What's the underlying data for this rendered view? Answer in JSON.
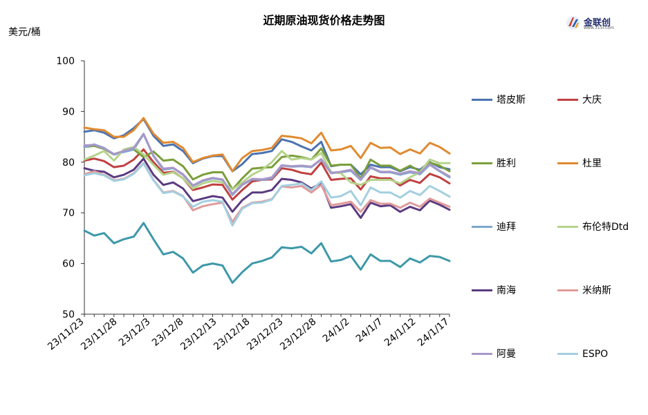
{
  "chart_data": {
    "type": "line",
    "title": "近期原油现货价格走势图",
    "ylabel": "美元/桶",
    "ylim": [
      50,
      100
    ],
    "yticks": [
      50,
      60,
      70,
      80,
      90,
      100
    ],
    "grid": false,
    "legend_position": "right",
    "x": [
      "23/11/22",
      "23/11/23",
      "23/11/24",
      "23/11/27",
      "23/11/28",
      "23/11/29",
      "23/11/30",
      "23/12/1",
      "23/12/4",
      "23/12/5",
      "23/12/6",
      "23/12/7",
      "23/12/8",
      "23/12/11",
      "23/12/12",
      "23/12/13",
      "23/12/14",
      "23/12/15",
      "23/12/18",
      "23/12/19",
      "23/12/20",
      "23/12/21",
      "23/12/22",
      "23/12/26",
      "23/12/27",
      "23/12/28",
      "23/12/29",
      "24/1/2",
      "24/1/3",
      "24/1/4",
      "24/1/5",
      "24/1/8",
      "24/1/9",
      "24/1/10",
      "24/1/11",
      "24/1/12",
      "24/1/16",
      "24/1/17"
    ],
    "xtick_labels": [
      "23/11/23",
      "23/11/28",
      "23/12/3",
      "23/12/8",
      "23/12/13",
      "23/12/18",
      "23/12/23",
      "23/12/28",
      "24/1/2",
      "24/1/7",
      "24/1/12",
      "24/1/17"
    ],
    "series": [
      {
        "name": "塔皮斯",
        "color": "#4a72b0",
        "values": [
          86.0,
          86.3,
          85.8,
          84.7,
          85.3,
          86.7,
          88.5,
          85.2,
          83.2,
          83.5,
          82.2,
          79.8,
          80.7,
          81.2,
          81.2,
          78.2,
          79.6,
          81.6,
          81.8,
          82.2,
          84.5,
          84.0,
          83.1,
          82.3,
          84.0,
          79.2,
          79.5,
          79.5,
          77.6,
          79.5,
          79.0,
          79.0,
          78.2,
          79.0,
          78.5,
          80.0,
          79.0,
          78.6
        ]
      },
      {
        "name": "大庆",
        "color": "#c04040",
        "values": [
          80.3,
          80.7,
          80.2,
          79.0,
          79.3,
          80.5,
          82.5,
          80.0,
          77.9,
          78.1,
          76.8,
          74.5,
          75.0,
          75.6,
          75.5,
          72.6,
          74.5,
          76.2,
          76.5,
          76.6,
          78.8,
          78.5,
          77.9,
          77.6,
          79.9,
          76.5,
          76.7,
          76.8,
          74.6,
          77.2,
          76.8,
          76.8,
          75.4,
          76.5,
          75.9,
          77.7,
          77.0,
          75.8
        ]
      },
      {
        "name": "胜利",
        "color": "#7a9e3a",
        "values": [
          83.0,
          83.2,
          82.6,
          81.5,
          82.0,
          82.5,
          81.0,
          82.1,
          80.3,
          80.5,
          79.2,
          76.6,
          77.5,
          78.0,
          78.0,
          74.6,
          76.8,
          78.7,
          78.9,
          79.0,
          81.0,
          81.3,
          81.0,
          80.5,
          82.7,
          79.3,
          79.5,
          79.5,
          76.8,
          80.5,
          79.3,
          79.3,
          78.3,
          79.3,
          78.2,
          79.9,
          79.3,
          78.2
        ]
      },
      {
        "name": "杜里",
        "color": "#e08a30",
        "values": [
          86.8,
          86.5,
          86.3,
          85.0,
          85.0,
          86.3,
          88.7,
          85.6,
          83.8,
          84.0,
          82.8,
          80.0,
          80.8,
          81.3,
          81.5,
          78.2,
          80.8,
          82.2,
          82.4,
          82.8,
          85.2,
          85.0,
          84.7,
          83.7,
          85.8,
          82.3,
          82.5,
          83.2,
          80.8,
          83.8,
          82.8,
          82.9,
          81.6,
          82.5,
          81.7,
          83.8,
          83.0,
          81.7
        ]
      },
      {
        "name": "迪拜",
        "color": "#7ea6cf",
        "values": [
          83.0,
          83.5,
          82.8,
          81.5,
          82.0,
          82.5,
          85.5,
          81.2,
          78.5,
          78.8,
          77.5,
          75.3,
          76.3,
          76.8,
          76.5,
          73.5,
          75.5,
          76.6,
          76.5,
          76.8,
          79.3,
          79.1,
          79.2,
          79.0,
          80.5,
          77.8,
          78.0,
          78.3,
          76.5,
          78.9,
          78.0,
          78.0,
          77.5,
          78.0,
          77.6,
          79.5,
          78.2,
          77.0
        ]
      },
      {
        "name": "布伦特Dtd",
        "color": "#b5d38a",
        "values": [
          80.5,
          81.3,
          82.2,
          80.3,
          82.5,
          83.0,
          81.5,
          79.5,
          77.5,
          78.0,
          76.8,
          74.8,
          75.8,
          76.3,
          76.0,
          74.6,
          76.0,
          77.5,
          78.5,
          80.0,
          82.2,
          80.5,
          80.8,
          80.5,
          81.8,
          78.0,
          77.8,
          76.0,
          75.5,
          76.5,
          76.5,
          76.5,
          75.8,
          77.0,
          78.0,
          80.5,
          79.8,
          79.8
        ]
      },
      {
        "name": "南海",
        "color": "#5a3a80",
        "values": [
          78.8,
          78.3,
          78.1,
          77.0,
          77.5,
          78.5,
          80.7,
          77.5,
          75.5,
          76.0,
          74.8,
          72.3,
          72.8,
          73.3,
          73.0,
          70.2,
          72.5,
          74.0,
          74.0,
          74.5,
          76.7,
          76.5,
          76.0,
          74.8,
          75.9,
          71.0,
          71.3,
          71.7,
          69.0,
          72.0,
          71.3,
          71.5,
          70.2,
          71.2,
          70.5,
          72.4,
          71.6,
          70.6
        ]
      },
      {
        "name": "米纳斯",
        "color": "#e09a9a",
        "values": [
          77.6,
          78.2,
          77.5,
          76.4,
          76.7,
          77.8,
          79.8,
          76.5,
          74.0,
          74.3,
          73.3,
          70.5,
          71.3,
          71.7,
          72.0,
          68.2,
          71.0,
          72.0,
          72.2,
          72.7,
          75.2,
          75.0,
          75.3,
          74.0,
          75.5,
          71.5,
          71.8,
          72.2,
          70.2,
          72.5,
          71.8,
          71.8,
          71.0,
          72.0,
          71.2,
          72.8,
          72.0,
          71.2
        ]
      },
      {
        "name": "阿曼",
        "color": "#a898c8",
        "values": [
          83.3,
          83.4,
          82.7,
          81.6,
          82.2,
          82.8,
          85.6,
          81.3,
          78.7,
          78.9,
          77.6,
          75.4,
          76.4,
          76.9,
          76.6,
          73.7,
          75.6,
          76.7,
          76.6,
          77.0,
          79.4,
          79.2,
          79.3,
          79.1,
          80.6,
          77.9,
          78.1,
          78.5,
          76.6,
          79.0,
          78.1,
          78.1,
          77.7,
          78.2,
          77.8,
          79.6,
          78.3,
          77.2
        ]
      },
      {
        "name": "ESPO",
        "color": "#a3cfe0",
        "values": [
          77.4,
          77.8,
          77.4,
          76.3,
          76.6,
          77.7,
          79.7,
          76.4,
          73.9,
          74.2,
          73.2,
          71.2,
          72.2,
          72.5,
          72.2,
          67.5,
          70.8,
          71.9,
          72.0,
          72.6,
          75.3,
          75.5,
          75.8,
          74.5,
          76.2,
          73.0,
          73.3,
          74.3,
          71.5,
          75.0,
          74.0,
          74.0,
          73.0,
          74.3,
          73.5,
          75.3,
          74.3,
          73.2
        ]
      },
      {
        "name": "",
        "color": "#3c98a8",
        "values": [
          66.5,
          65.5,
          66.0,
          64.0,
          64.8,
          65.3,
          68.0,
          64.8,
          61.8,
          62.3,
          61.0,
          58.2,
          59.6,
          60.0,
          59.6,
          56.2,
          58.3,
          60.0,
          60.5,
          61.2,
          63.2,
          63.0,
          63.3,
          62.0,
          64.0,
          60.4,
          60.7,
          61.5,
          58.8,
          61.8,
          60.5,
          60.5,
          59.3,
          61.0,
          60.2,
          61.5,
          61.3,
          60.5
        ]
      }
    ]
  },
  "logo": {
    "text": "金联创",
    "sub": "www.315i.com"
  }
}
